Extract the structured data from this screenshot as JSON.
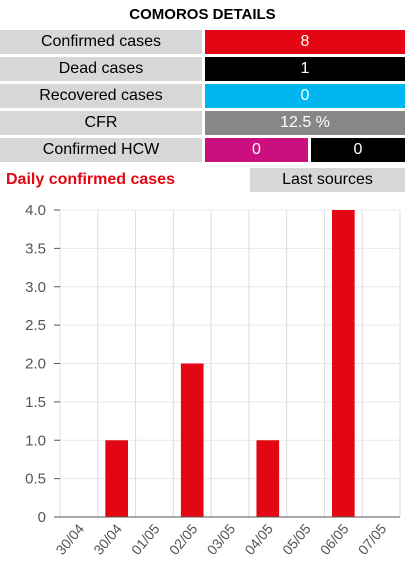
{
  "title": "COMOROS DETAILS",
  "stats": [
    {
      "label": "Confirmed cases",
      "value": "8",
      "color": "#e30613"
    },
    {
      "label": "Dead cases",
      "value": "1",
      "color": "#000000"
    },
    {
      "label": "Recovered cases",
      "value": "0",
      "color": "#00b6f0"
    },
    {
      "label": "CFR",
      "value": "12.5 %",
      "color": "#878787"
    }
  ],
  "hcw": {
    "label": "Confirmed HCW",
    "value1": "0",
    "value2": "0",
    "color1": "#cc0f7f",
    "color2": "#000000"
  },
  "daily_title": "Daily confirmed cases",
  "last_sources_label": "Last sources",
  "chart_data": {
    "type": "bar",
    "categories": [
      "30/04",
      "30/04",
      "01/05",
      "02/05",
      "03/05",
      "04/05",
      "05/05",
      "06/05",
      "07/05"
    ],
    "values": [
      0,
      1,
      0,
      2,
      0,
      1,
      0,
      4,
      0
    ],
    "ylim": [
      0,
      4
    ],
    "yticks": [
      "0",
      "0.5",
      "1.0",
      "1.5",
      "2.0",
      "2.5",
      "3.0",
      "3.5",
      "4.0"
    ],
    "bar_color": "#e30613",
    "grid": true
  }
}
